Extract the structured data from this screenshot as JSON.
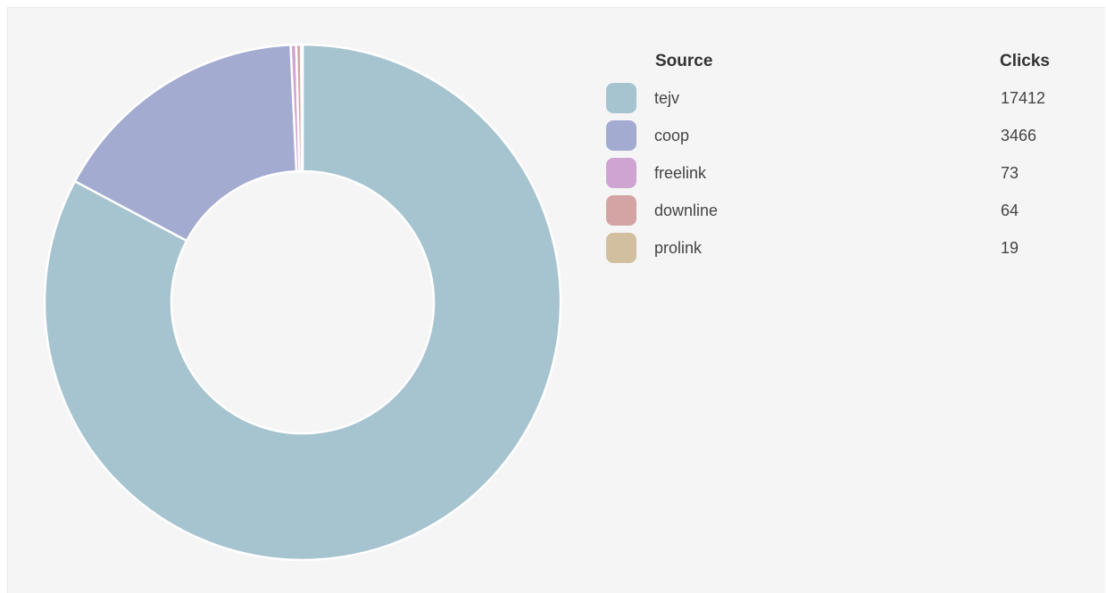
{
  "chart_data": {
    "type": "pie",
    "variant": "donut",
    "legend": {
      "source_header": "Source",
      "clicks_header": "Clicks",
      "placement": "right"
    },
    "slices": [
      {
        "label": "tejv",
        "value": 17412,
        "color": "#a6c3d0",
        "value_text": "17412"
      },
      {
        "label": "coop",
        "value": 3466,
        "color": "#a4abd0",
        "value_text": "3466"
      },
      {
        "label": "freelink",
        "value": 73,
        "color": "#cfa4d2",
        "value_text": "73"
      },
      {
        "label": "downline",
        "value": 64,
        "color": "#d4a4a4",
        "value_text": "64"
      },
      {
        "label": "prolink",
        "value": 19,
        "color": "#d2bfa0",
        "value_text": "19"
      }
    ]
  }
}
